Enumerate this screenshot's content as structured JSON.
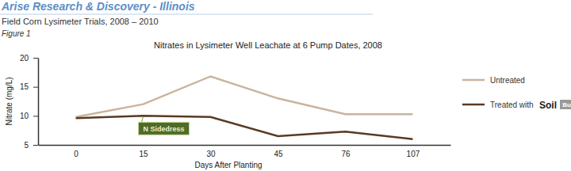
{
  "chart_data": {
    "type": "line",
    "header": "Arise Research & Discovery - Illinois",
    "subtitle": "Field Corn Lysimeter Trials, 2008 – 2010",
    "figure_label": "Figure 1",
    "title": "Nitrates in Lysimeter Well Leachate at 6 Pump Dates, 2008",
    "x_label": "Days After Planting",
    "y_label": "Nitrate (mg/L)",
    "categories": [
      "0",
      "15",
      "30",
      "45",
      "76",
      "107"
    ],
    "series": [
      {
        "name": "Untreated",
        "color": "#c9b49d",
        "values": [
          9.8,
          12.0,
          16.8,
          13.0,
          10.3,
          10.3
        ]
      },
      {
        "name": "Treated with",
        "color": "#5a3a22",
        "values": [
          9.6,
          10.0,
          9.8,
          6.5,
          7.3,
          6.0
        ]
      }
    ],
    "legend_logo": [
      "Soil",
      "Builder"
    ],
    "annotations": [
      "N Sidedress"
    ],
    "ylim": [
      5,
      20
    ],
    "yticks": [
      5,
      10,
      15,
      20
    ],
    "grid": false,
    "legend": "right",
    "marker": "none"
  }
}
